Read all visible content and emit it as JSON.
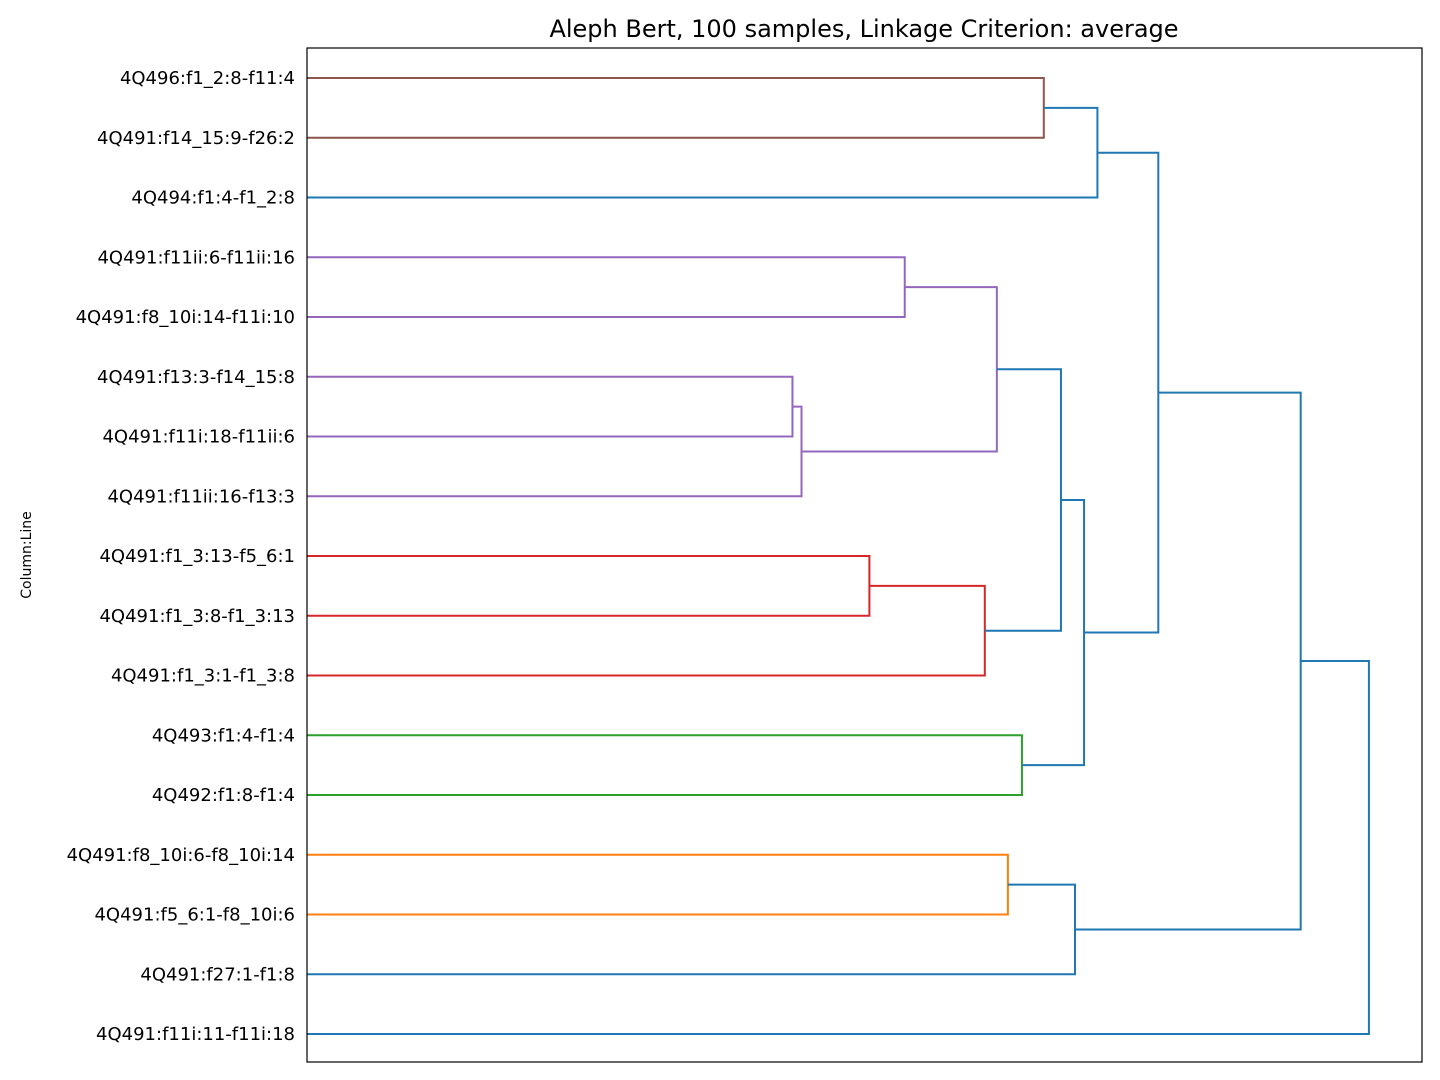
{
  "chart_data": {
    "type": "dendrogram",
    "title": "Aleph Bert, 100 samples, Linkage Criterion: average",
    "ylabel": "Column:Line",
    "xlabel": "",
    "orientation": "left",
    "grid": false,
    "distance_range": [
      1.0,
      0.0
    ],
    "leaves": [
      "4Q496:f1_2:8-f11:4",
      "4Q491:f14_15:9-f26:2",
      "4Q494:f1:4-f1_2:8",
      "4Q491:f11ii:6-f11ii:16",
      "4Q491:f8_10i:14-f11i:10",
      "4Q491:f13:3-f14_15:8",
      "4Q491:f11i:18-f11ii:6",
      "4Q491:f11ii:16-f13:3",
      "4Q491:f1_3:13-f5_6:1",
      "4Q491:f1_3:8-f1_3:13",
      "4Q491:f1_3:1-f1_3:8",
      "4Q493:f1:4-f1:4",
      "4Q492:f1:8-f1:4",
      "4Q491:f8_10i:6-f8_10i:14",
      "4Q491:f5_6:1-f8_10i:6",
      "4Q491:f27:1-f1:8",
      "4Q491:f11i:11-f11i:18"
    ],
    "colors": {
      "c_brown": "#8c564b",
      "c_purple": "#9467bd",
      "c_red": "#d62728",
      "c_green": "#2ca02c",
      "c_orange": "#ff7f0e",
      "c_blue": "#1f77b4"
    },
    "merges": [
      {
        "a": "L0",
        "b": "L1",
        "distance": 0.3392,
        "color": "c_brown"
      },
      {
        "a": "M0",
        "b": "L2",
        "distance": 0.2911,
        "color": "c_blue"
      },
      {
        "a": "L3",
        "b": "L4",
        "distance": 0.4639,
        "color": "c_purple"
      },
      {
        "a": "L5",
        "b": "L6",
        "distance": 0.5646,
        "color": "c_purple"
      },
      {
        "a": "M3",
        "b": "L7",
        "distance": 0.5565,
        "color": "c_purple"
      },
      {
        "a": "M2",
        "b": "M4",
        "distance": 0.3813,
        "color": "c_purple"
      },
      {
        "a": "L8",
        "b": "L9",
        "distance": 0.4956,
        "color": "c_red"
      },
      {
        "a": "M6",
        "b": "L10",
        "distance": 0.3921,
        "color": "c_red"
      },
      {
        "a": "M5",
        "b": "M7",
        "distance": 0.3238,
        "color": "c_blue"
      },
      {
        "a": "L11",
        "b": "L12",
        "distance": 0.3588,
        "color": "c_green"
      },
      {
        "a": "M8",
        "b": "M9",
        "distance": 0.3031,
        "color": "c_blue"
      },
      {
        "a": "M1",
        "b": "M10",
        "distance": 0.2365,
        "color": "c_blue"
      },
      {
        "a": "L13",
        "b": "L14",
        "distance": 0.3714,
        "color": "c_orange"
      },
      {
        "a": "M12",
        "b": "L15",
        "distance": 0.3112,
        "color": "c_blue"
      },
      {
        "a": "M11",
        "b": "M13",
        "distance": 0.1088,
        "color": "c_blue"
      },
      {
        "a": "M14",
        "b": "L16",
        "distance": 0.0476,
        "color": "c_blue"
      }
    ]
  }
}
